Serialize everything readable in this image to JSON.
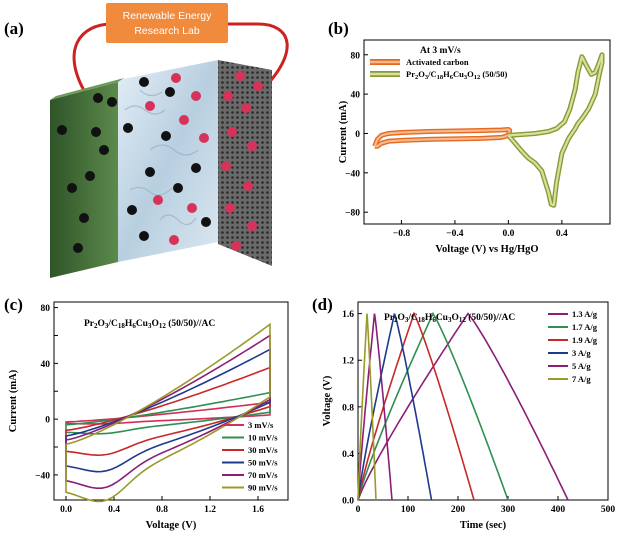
{
  "figure_labels": {
    "a": "(a)",
    "b": "(b)",
    "c": "(c)",
    "d": "(d)"
  },
  "panel_a": {
    "banner_line1": "Renewable Energy",
    "banner_line2": "Research Lab",
    "colors": {
      "banner": "#f08a3c",
      "wire": "#cc2222",
      "green_electrode": "#3f6b35",
      "gray_electrode": "#5a5a5a",
      "anion": "#111111",
      "cation": "#d6325a",
      "electrolyte": "#cfe0ec"
    }
  },
  "chart_data": [
    {
      "id": "b",
      "type": "line",
      "title": "At 3 mV/s",
      "xlabel": "Voltage (V) vs Hg/HgO",
      "ylabel": "Current (mA)",
      "xlim": [
        -1.08,
        0.76
      ],
      "ylim": [
        -92,
        95
      ],
      "xticks": [
        -0.8,
        -0.4,
        0.0,
        0.4
      ],
      "xtick_labels": [
        "−0.8",
        "−0.4",
        "0.0",
        "0.4"
      ],
      "yticks": [
        -80,
        -40,
        0,
        40,
        80
      ],
      "ytick_labels": [
        "−80",
        "−40",
        "0",
        "40",
        "80"
      ],
      "series": [
        {
          "name": "Activated carbon",
          "color": "#f0a060",
          "x": [
            -1.0,
            -0.98,
            -0.95,
            -0.9,
            -0.8,
            -0.6,
            -0.4,
            -0.2,
            -0.05,
            0.0,
            0.01,
            0.0,
            -0.05,
            -0.2,
            -0.4,
            -0.6,
            -0.8,
            -0.9,
            -0.95,
            -0.98,
            -1.0
          ],
          "y": [
            -13,
            -6,
            -2,
            0,
            1,
            2,
            2.5,
            3,
            3.5,
            4,
            3,
            -2,
            -4,
            -5,
            -5.5,
            -6,
            -7,
            -8,
            -10,
            -13,
            -13
          ]
        },
        {
          "name": "Pr2O3/C18H6Cu3O12 (50/50)",
          "color": "#b4c868",
          "x": [
            0.0,
            0.1,
            0.2,
            0.3,
            0.36,
            0.42,
            0.46,
            0.5,
            0.52,
            0.55,
            0.58,
            0.62,
            0.65,
            0.68,
            0.7,
            0.7,
            0.68,
            0.65,
            0.6,
            0.55,
            0.52,
            0.5,
            0.45,
            0.4,
            0.36,
            0.34,
            0.32,
            0.3,
            0.25,
            0.2,
            0.15,
            0.1,
            0.05,
            0.0
          ],
          "y": [
            -2,
            -1,
            0,
            2,
            5,
            12,
            25,
            45,
            62,
            78,
            70,
            60,
            62,
            72,
            80,
            72,
            60,
            40,
            25,
            15,
            10,
            5,
            -5,
            -20,
            -50,
            -73,
            -72,
            -60,
            -38,
            -30,
            -25,
            -18,
            -10,
            -2
          ]
        }
      ]
    },
    {
      "id": "c",
      "type": "line",
      "title": "Pr2O3/C18H6Cu3O12 (50/50)//AC",
      "xlabel": "Voltage (V)",
      "ylabel": "Current (mA)",
      "xlim": [
        -0.1,
        1.85
      ],
      "ylim": [
        -58,
        84
      ],
      "xticks": [
        0.0,
        0.4,
        0.8,
        1.2,
        1.6
      ],
      "xtick_labels": [
        "0.0",
        "0.4",
        "0.8",
        "1.2",
        "1.6"
      ],
      "yticks": [
        -40,
        -20,
        0,
        20,
        40,
        60,
        80
      ],
      "ytick_labels": [
        "−40",
        "",
        "0",
        "",
        "40",
        "",
        "80"
      ],
      "series": [
        {
          "name": "3 mV/s",
          "color": "#d0305a",
          "upper_start": -2,
          "upper_end": 12,
          "lower_end": 3,
          "lower_bottom": -3
        },
        {
          "name": "10 mV/s",
          "color": "#2e9050",
          "upper_start": -4,
          "upper_end": 19,
          "lower_end": 5,
          "lower_bottom": -9
        },
        {
          "name": "30 mV/s",
          "color": "#c82828",
          "upper_start": -8,
          "upper_end": 37,
          "lower_end": 9,
          "lower_bottom": -22
        },
        {
          "name": "50 mV/s",
          "color": "#1e3a8c",
          "upper_start": -12,
          "upper_end": 50,
          "lower_end": 12,
          "lower_bottom": -32
        },
        {
          "name": "70 mV/s",
          "color": "#8a1e78",
          "upper_start": -15,
          "upper_end": 60,
          "lower_end": 14,
          "lower_bottom": -42
        },
        {
          "name": "90 mV/s",
          "color": "#9a9a28",
          "upper_start": -18,
          "upper_end": 68,
          "lower_end": 16,
          "lower_bottom": -50
        }
      ]
    },
    {
      "id": "d",
      "type": "line",
      "title": "Pr2O3/C18H6Cu3O12 (50/50)//AC",
      "xlabel": "Time (sec)",
      "ylabel": "Voltage (V)",
      "xlim": [
        0,
        500
      ],
      "ylim": [
        0,
        1.7
      ],
      "xticks": [
        0,
        100,
        200,
        300,
        400,
        500
      ],
      "xtick_labels": [
        "0",
        "100",
        "200",
        "300",
        "400",
        "500"
      ],
      "yticks": [
        0.0,
        0.4,
        0.8,
        1.2,
        1.6
      ],
      "ytick_labels": [
        "0.0",
        "0.4",
        "0.8",
        "1.2",
        "1.6"
      ],
      "series": [
        {
          "name": "1.3 A/g",
          "color": "#8a1e78",
          "t_peak": 220,
          "t_end": 420
        },
        {
          "name": "1.7 A/g",
          "color": "#2e9050",
          "t_peak": 150,
          "t_end": 300
        },
        {
          "name": "1.9 A/g",
          "color": "#c82828",
          "t_peak": 112,
          "t_end": 232
        },
        {
          "name": "3 A/g",
          "color": "#1e3a8c",
          "t_peak": 73,
          "t_end": 147
        },
        {
          "name": "5 A/g",
          "color": "#8a1e78",
          "t_peak": 33,
          "t_end": 68
        },
        {
          "name": "7 A/g",
          "color": "#9a9a28",
          "t_peak": 18,
          "t_end": 36
        }
      ]
    }
  ]
}
